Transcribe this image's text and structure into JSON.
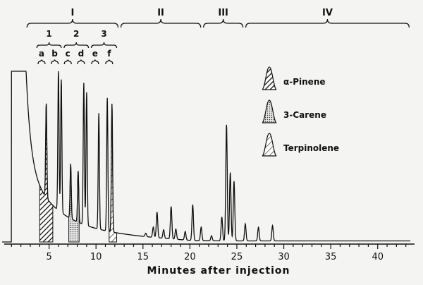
{
  "chart_data": {
    "type": "line",
    "title": "",
    "xlabel": "Minutes after injection",
    "ylabel": "",
    "xlim": [
      0,
      44
    ],
    "ylim": [
      0,
      100
    ],
    "x_ticks": [
      5,
      10,
      15,
      20,
      25,
      30,
      35,
      40
    ],
    "x_tick_labels": [
      "5",
      "10",
      "15",
      "20",
      "25",
      "30",
      "35",
      "40"
    ],
    "grid": false,
    "baseline": 0,
    "solvent_peak": {
      "start": 1.0,
      "end": 2.5,
      "height": 100
    },
    "peaks": [
      {
        "t": 4.7,
        "h": 55
      },
      {
        "t": 6.0,
        "h": 82
      },
      {
        "t": 6.3,
        "h": 78
      },
      {
        "t": 7.3,
        "h": 32
      },
      {
        "t": 8.1,
        "h": 30
      },
      {
        "t": 8.7,
        "h": 83
      },
      {
        "t": 9.0,
        "h": 78
      },
      {
        "t": 10.3,
        "h": 68
      },
      {
        "t": 11.2,
        "h": 78
      },
      {
        "t": 11.7,
        "h": 75
      },
      {
        "t": 15.3,
        "h": 2
      },
      {
        "t": 16.1,
        "h": 6
      },
      {
        "t": 16.5,
        "h": 15
      },
      {
        "t": 17.2,
        "h": 5
      },
      {
        "t": 18.0,
        "h": 19
      },
      {
        "t": 18.5,
        "h": 6
      },
      {
        "t": 19.5,
        "h": 5
      },
      {
        "t": 20.3,
        "h": 21
      },
      {
        "t": 21.2,
        "h": 8
      },
      {
        "t": 22.3,
        "h": 3
      },
      {
        "t": 23.4,
        "h": 14
      },
      {
        "t": 23.9,
        "h": 68
      },
      {
        "t": 24.3,
        "h": 40
      },
      {
        "t": 24.7,
        "h": 35
      },
      {
        "t": 25.9,
        "h": 10
      },
      {
        "t": 27.3,
        "h": 8
      },
      {
        "t": 28.8,
        "h": 9
      }
    ],
    "filled_regions": [
      {
        "compound": "α-Pinene",
        "from": 4.0,
        "to": 5.4,
        "pattern": "hatch-dense"
      },
      {
        "compound": "3-Carene",
        "from": 7.1,
        "to": 8.2,
        "pattern": "dots"
      },
      {
        "compound": "Terpinolene",
        "from": 11.4,
        "to": 12.2,
        "pattern": "hatch-light"
      }
    ],
    "sections": [
      {
        "label": "I",
        "from": 2.5,
        "to": 12.5
      },
      {
        "label": "II",
        "from": 12.5,
        "to": 21.3
      },
      {
        "label": "III",
        "from": 21.3,
        "to": 25.8
      },
      {
        "label": "IV",
        "from": 25.8,
        "to": 43.5
      }
    ],
    "groups": [
      {
        "label": "1",
        "from": 3.7,
        "to": 6.3
      },
      {
        "label": "2",
        "from": 6.6,
        "to": 9.2
      },
      {
        "label": "3",
        "from": 9.5,
        "to": 12.2
      }
    ],
    "peak_labels": [
      {
        "label": "a",
        "t": 4.2
      },
      {
        "label": "b",
        "t": 5.6
      },
      {
        "label": "c",
        "t": 7.0
      },
      {
        "label": "d",
        "t": 8.4
      },
      {
        "label": "e",
        "t": 9.9
      },
      {
        "label": "f",
        "t": 11.4
      }
    ],
    "legend": {
      "position": "right",
      "entries": [
        {
          "label": "α-Pinene",
          "pattern": "hatch-dense"
        },
        {
          "label": "3-Carene",
          "pattern": "dots"
        },
        {
          "label": "Terpinolene",
          "pattern": "hatch-light"
        }
      ]
    }
  }
}
